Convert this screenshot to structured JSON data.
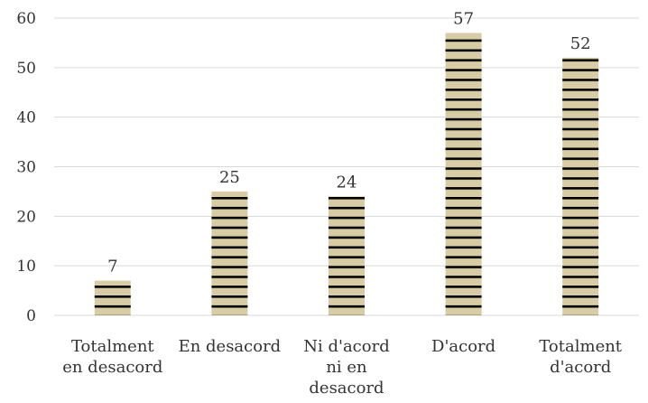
{
  "chart_data": {
    "type": "bar",
    "title": "",
    "xlabel": "",
    "ylabel": "",
    "ylim": [
      0,
      60
    ],
    "yticks": [
      0,
      10,
      20,
      30,
      40,
      50,
      60
    ],
    "grid": true,
    "categories": [
      [
        "Totalment",
        "en desacord"
      ],
      [
        "En desacord"
      ],
      [
        "Ni d'acord",
        "ni en",
        "desacord"
      ],
      [
        "D'acord"
      ],
      [
        "Totalment",
        "d'acord"
      ]
    ],
    "values": [
      7,
      25,
      24,
      57,
      52
    ],
    "data_labels": [
      "7",
      "25",
      "24",
      "57",
      "52"
    ],
    "bar_color": "#d7cca5",
    "bar_stripe_color": "#000000",
    "bar_pattern": "horizontal-stripes"
  }
}
